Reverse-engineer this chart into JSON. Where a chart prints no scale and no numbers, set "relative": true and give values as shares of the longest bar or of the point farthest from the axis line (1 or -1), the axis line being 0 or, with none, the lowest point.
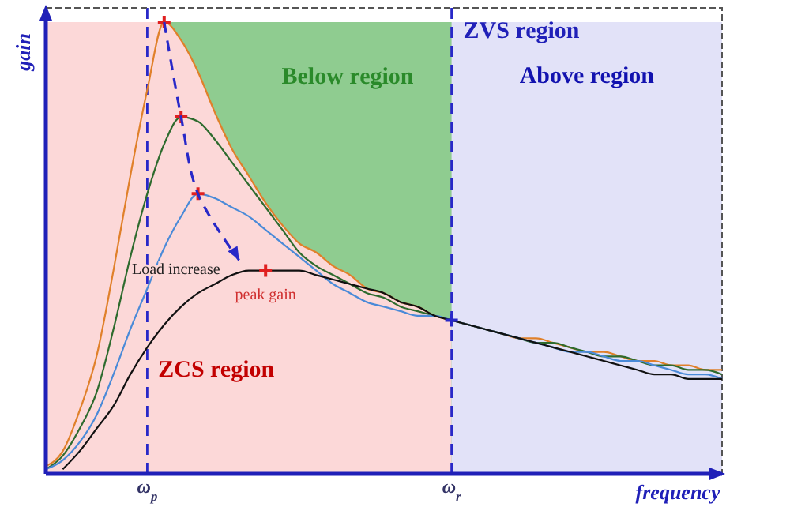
{
  "chart_data": {
    "type": "line",
    "relative": true,
    "xlabel": "frequency",
    "ylabel": "gain",
    "tick_labels": "x",
    "legend": false,
    "categories": [
      null,
      null,
      null,
      null,
      null,
      null,
      "ω$_{p}$",
      null,
      null,
      null,
      null,
      null,
      null,
      null,
      null,
      null,
      null,
      null,
      null,
      null,
      null,
      null,
      null,
      null,
      "ω$_{r}$",
      null,
      null,
      null,
      null,
      null,
      null,
      null,
      null,
      null,
      null,
      null,
      null,
      null,
      null,
      null,
      null
    ],
    "series": [
      {
        "type": "area",
        "name": "ZCS region",
        "color": "#fcd8d8",
        "values": [
          1,
          1,
          1,
          1,
          1,
          1,
          1,
          1.0,
          0.96,
          0.89,
          0.8,
          0.72,
          0.66,
          0.6,
          0.55,
          0.51,
          0.49,
          0.46,
          0.44,
          0.41,
          0.4,
          0.38,
          0.37,
          0.35,
          0.34,
          null,
          null,
          null,
          null,
          null,
          null,
          null,
          null,
          null,
          null,
          null,
          null,
          null,
          null,
          null,
          null
        ]
      },
      {
        "type": "area",
        "name": "Above region",
        "color": "#e2e2f8",
        "values": [
          null,
          null,
          null,
          null,
          null,
          null,
          null,
          null,
          null,
          null,
          null,
          null,
          null,
          null,
          null,
          null,
          null,
          null,
          null,
          null,
          null,
          null,
          null,
          null,
          1,
          1,
          1,
          1,
          1,
          1,
          1,
          1,
          1,
          1,
          1,
          1,
          1,
          1,
          1,
          1,
          1
        ]
      },
      {
        "color": "#e0802a",
        "marker": "none",
        "line_style": "solid",
        "values": [
          0.017,
          0.05,
          0.14,
          0.26,
          0.45,
          0.66,
          0.85,
          1.0,
          0.96,
          0.89,
          0.8,
          0.72,
          0.66,
          0.6,
          0.55,
          0.51,
          0.49,
          0.46,
          0.44,
          0.41,
          0.4,
          0.38,
          0.37,
          0.35,
          0.34,
          0.33,
          0.32,
          0.31,
          0.3,
          0.3,
          0.29,
          0.28,
          0.27,
          0.27,
          0.26,
          0.25,
          0.25,
          0.24,
          0.24,
          0.23,
          0.23
        ]
      },
      {
        "color": "#2e6b2e",
        "marker": "none",
        "line_style": "solid",
        "values": [
          0.01,
          0.04,
          0.1,
          0.18,
          0.32,
          0.48,
          0.62,
          0.73,
          0.79,
          0.78,
          0.74,
          0.69,
          0.64,
          0.59,
          0.54,
          0.49,
          0.46,
          0.44,
          0.42,
          0.4,
          0.39,
          0.37,
          0.36,
          0.35,
          0.34,
          0.33,
          0.32,
          0.31,
          0.3,
          0.29,
          0.29,
          0.28,
          0.27,
          0.26,
          0.26,
          0.25,
          0.24,
          0.24,
          0.23,
          0.23,
          0.22
        ]
      },
      {
        "color": "#4a8ad8",
        "marker": "none",
        "line_style": "solid",
        "values": [
          0.01,
          0.03,
          0.07,
          0.13,
          0.22,
          0.32,
          0.41,
          0.5,
          0.57,
          0.62,
          0.61,
          0.59,
          0.57,
          0.54,
          0.51,
          0.48,
          0.45,
          0.42,
          0.4,
          0.38,
          0.37,
          0.36,
          0.35,
          0.35,
          0.34,
          0.33,
          0.32,
          0.31,
          0.3,
          0.29,
          0.28,
          0.27,
          0.27,
          0.26,
          0.25,
          0.25,
          0.24,
          0.23,
          0.22,
          0.22,
          0.21
        ]
      },
      {
        "color": "#111111",
        "marker": "none",
        "line_style": "solid",
        "values": [
          null,
          0.01,
          0.05,
          0.1,
          0.15,
          0.22,
          0.28,
          0.33,
          0.37,
          0.4,
          0.42,
          0.44,
          0.45,
          0.45,
          0.45,
          0.45,
          0.44,
          0.43,
          0.42,
          0.41,
          0.4,
          0.38,
          0.37,
          0.35,
          0.34,
          0.33,
          0.32,
          0.31,
          0.3,
          0.29,
          0.28,
          0.27,
          0.26,
          0.25,
          0.24,
          0.23,
          0.22,
          0.22,
          0.21,
          0.21,
          0.21
        ]
      },
      {
        "type": "scatter",
        "color": "#e02020",
        "marker": "cross",
        "values": [
          null,
          null,
          null,
          null,
          null,
          null,
          null,
          1.0,
          0.79,
          0.62,
          null,
          null,
          null,
          0.45,
          null,
          null,
          null,
          null,
          null,
          null,
          null,
          null,
          null,
          null,
          null,
          null,
          null,
          null,
          null,
          null,
          null,
          null,
          null,
          null,
          null,
          null,
          null,
          null,
          null,
          null,
          null
        ]
      },
      {
        "type": "scatter",
        "color": "#2828c8",
        "marker": "cross",
        "values": [
          null,
          null,
          null,
          null,
          null,
          null,
          null,
          null,
          null,
          null,
          null,
          null,
          null,
          null,
          null,
          null,
          null,
          null,
          null,
          null,
          null,
          null,
          null,
          null,
          0.34,
          null,
          null,
          null,
          null,
          null,
          null,
          null,
          null,
          null,
          null,
          null,
          null,
          null,
          null,
          null,
          null
        ]
      }
    ],
    "ref_lines": [
      {
        "axis": "x",
        "value": "ω$_{p}$",
        "line_style": "dashed",
        "color": "#2828c8"
      },
      {
        "axis": "x",
        "value": "ω$_{r}$",
        "line_style": "dashed",
        "color": "#2828c8"
      }
    ],
    "annotations": [
      "ZVS region",
      "Below region",
      "Load increase",
      {
        "text": "peak gain",
        "y": 0.45
      }
    ]
  }
}
